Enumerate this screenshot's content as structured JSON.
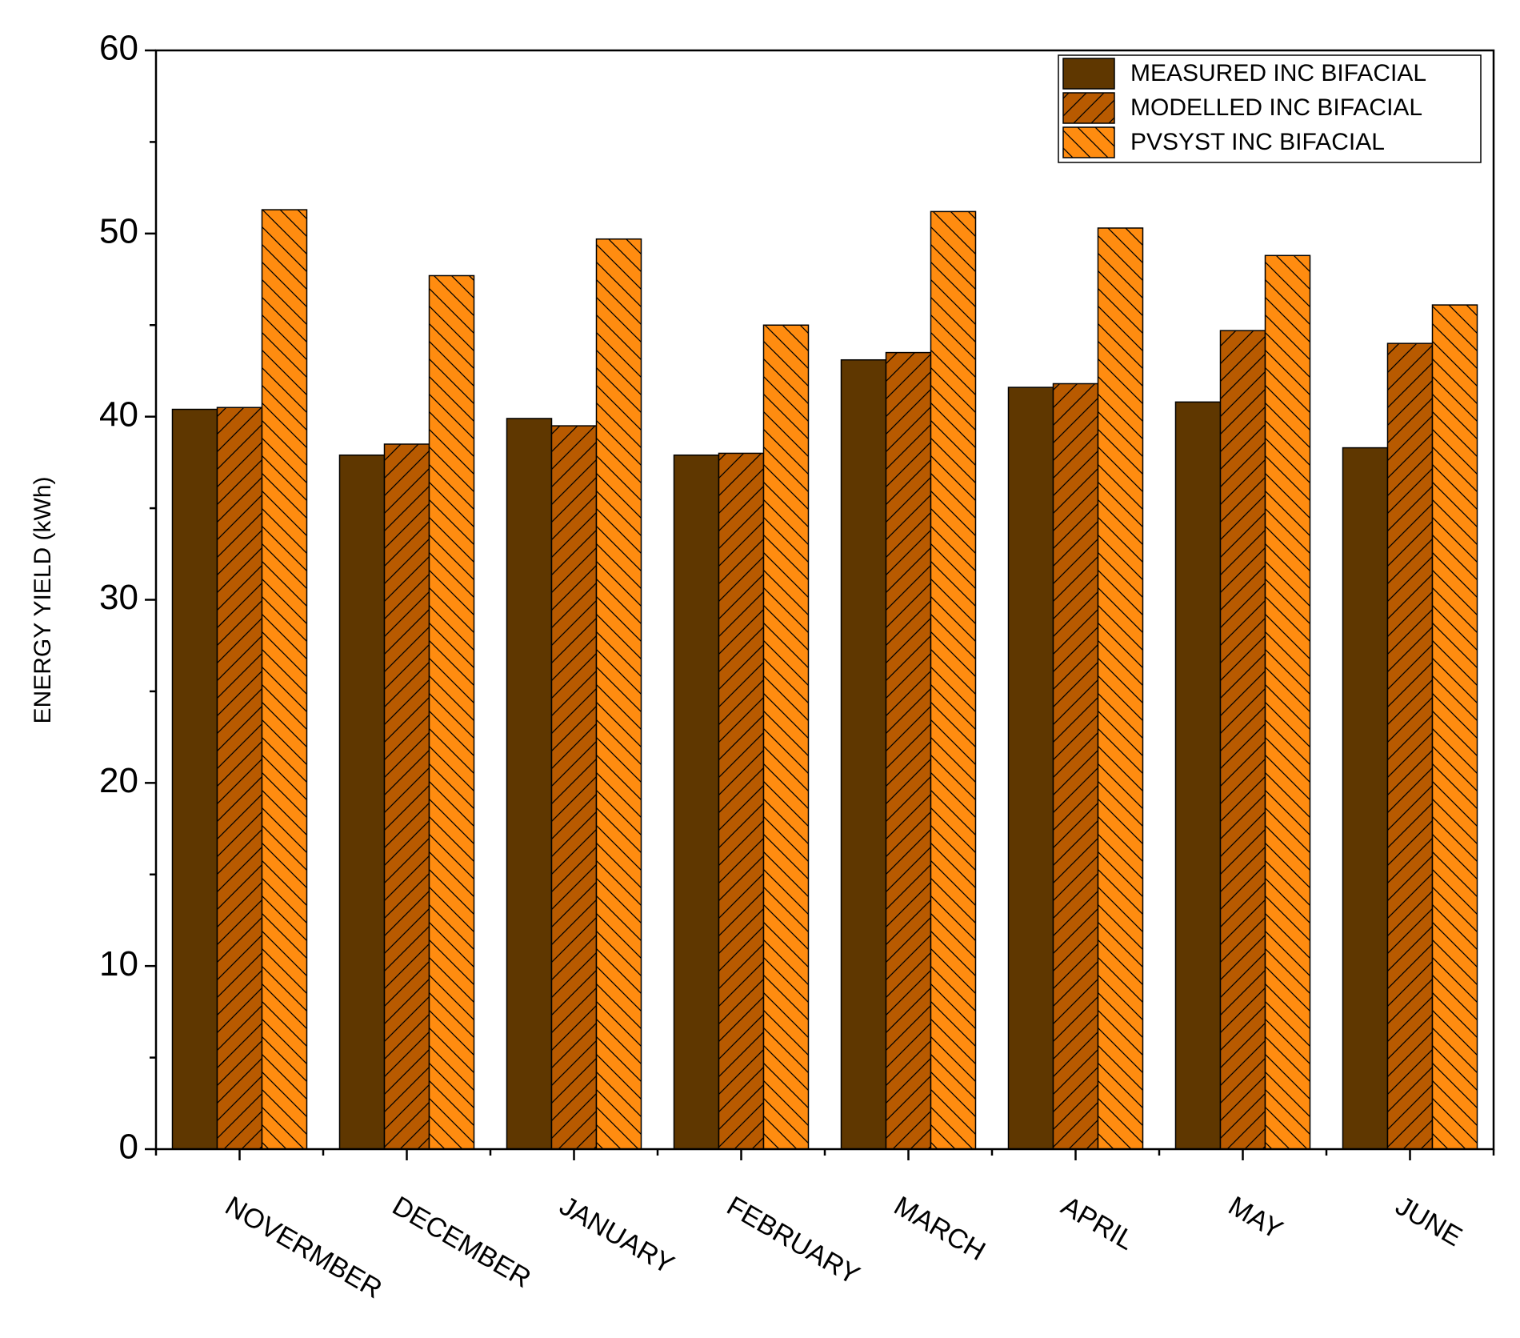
{
  "chart_data": {
    "type": "bar",
    "y_label": "ENERGY YIELD (kWh)",
    "categories": [
      "NOVERMBER",
      "DECEMBER",
      "JANUARY",
      "FEBRUARY",
      "MARCH",
      "APRIL",
      "MAY",
      "JUNE"
    ],
    "series": [
      {
        "name": "MEASURED INC BIFACIAL",
        "color": "#5f3700",
        "hatch": "none",
        "values": [
          40.4,
          37.9,
          39.9,
          37.9,
          43.1,
          41.6,
          40.8,
          38.3
        ]
      },
      {
        "name": "MODELLED INC BIFACIAL",
        "color": "#b85a00",
        "hatch": "/",
        "values": [
          40.5,
          38.5,
          39.5,
          38.0,
          43.5,
          41.8,
          44.7,
          44.0
        ]
      },
      {
        "name": "PVSYST INC BIFACIAL",
        "color": "#ff8c10",
        "hatch": "\\",
        "values": [
          51.3,
          47.7,
          49.7,
          45.0,
          51.2,
          50.3,
          48.8,
          46.1
        ]
      }
    ],
    "ylim": [
      0,
      60
    ],
    "yticks": [
      0,
      10,
      20,
      30,
      40,
      50,
      60
    ],
    "legend": "upper right"
  }
}
